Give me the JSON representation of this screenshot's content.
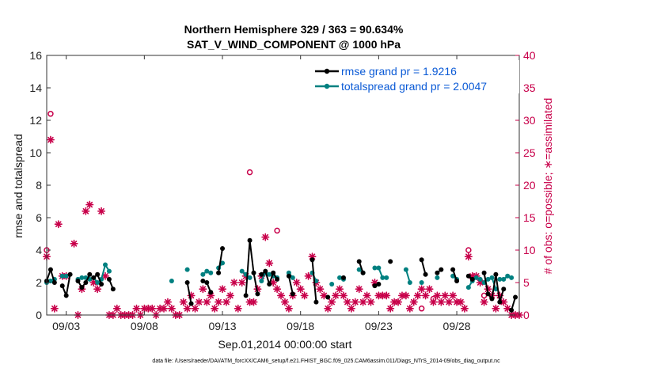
{
  "chart_data": {
    "type": "line",
    "title": "Northern Hemisphere 329 / 363 = 90.634%",
    "subtitle": "SAT_V_WIND_COMPONENT @ 1000 hPa",
    "xlabel": "Sep.01,2014 00:00:00 start",
    "ylabel": "rmse and totalspread",
    "y2label": "# of obs: o=possible; ∗=assimilated",
    "xlim": [
      1.75,
      32.0
    ],
    "ylim": [
      0,
      16
    ],
    "y2lim": [
      0,
      40
    ],
    "yticks": [
      "0",
      "2",
      "4",
      "6",
      "8",
      "10",
      "12",
      "14",
      "16"
    ],
    "y2ticks": [
      "0",
      "5",
      "10",
      "15",
      "20",
      "25",
      "30",
      "35",
      "40"
    ],
    "xticks": [
      {
        "x": 3,
        "label": "09/03"
      },
      {
        "x": 8,
        "label": "09/08"
      },
      {
        "x": 13,
        "label": "09/13"
      },
      {
        "x": 18,
        "label": "09/18"
      },
      {
        "x": 23,
        "label": "09/23"
      },
      {
        "x": 28,
        "label": "09/28"
      }
    ],
    "grid": false,
    "legend_position": "top-right",
    "series": [
      {
        "name": "rmse grand pr = 1.9216",
        "color": "#000000",
        "segments": [
          [
            [
              1.75,
              2.1
            ],
            [
              2.0,
              2.8
            ],
            [
              2.25,
              2.0
            ]
          ],
          [
            [
              2.75,
              1.8
            ],
            [
              3.0,
              1.2
            ],
            [
              3.25,
              2.5
            ]
          ],
          [
            [
              3.75,
              2.1
            ],
            [
              4.0,
              1.7
            ],
            [
              4.25,
              2.0
            ],
            [
              4.5,
              2.5
            ]
          ],
          [
            [
              4.75,
              2.3
            ],
            [
              5.0,
              2.5
            ],
            [
              5.25,
              1.9
            ]
          ],
          [
            [
              5.75,
              2.2
            ],
            [
              6.0,
              1.6
            ]
          ],
          [
            [
              10.75,
              2.0
            ],
            [
              11.0,
              0.7
            ]
          ],
          [
            [
              11.75,
              2.1
            ],
            [
              12.0,
              2.0
            ],
            [
              12.25,
              1.4
            ]
          ],
          [
            [
              12.75,
              2.6
            ],
            [
              13.0,
              4.1
            ]
          ],
          [
            [
              14.5,
              1.2
            ],
            [
              14.75,
              4.6
            ],
            [
              15.0,
              2.6
            ],
            [
              15.25,
              1.3
            ]
          ],
          [
            [
              15.5,
              2.5
            ],
            [
              15.75,
              2.7
            ],
            [
              16.0,
              1.9
            ],
            [
              16.25,
              2.6
            ],
            [
              16.5,
              2.2
            ]
          ],
          [
            [
              17.25,
              2.4
            ],
            [
              17.5,
              1.3
            ]
          ],
          [
            [
              18.75,
              3.4
            ],
            [
              19.0,
              0.8
            ]
          ],
          [
            [
              19.75,
              1.1
            ]
          ],
          [
            [
              20.75,
              2.3
            ]
          ],
          [
            [
              21.75,
              3.3
            ],
            [
              22.0,
              2.6
            ]
          ],
          [
            [
              22.75,
              1.8
            ],
            [
              23.0,
              1.9
            ]
          ],
          [
            [
              23.75,
              3.3
            ]
          ],
          [
            [
              25.75,
              3.4
            ],
            [
              26.0,
              2.5
            ]
          ],
          [
            [
              26.75,
              2.6
            ],
            [
              27.0,
              2.8
            ]
          ],
          [
            [
              27.75,
              2.8
            ],
            [
              28.0,
              2.1
            ]
          ],
          [
            [
              28.75,
              2.4
            ],
            [
              29.0,
              2.2
            ]
          ],
          [
            [
              29.75,
              2.6
            ],
            [
              30.0,
              1.3
            ],
            [
              30.25,
              1.0
            ],
            [
              30.5,
              2.5
            ],
            [
              30.75,
              0.8
            ],
            [
              31.0,
              1.6
            ]
          ],
          [
            [
              31.5,
              0.3
            ],
            [
              31.75,
              1.1
            ]
          ]
        ]
      },
      {
        "name": "totalspread grand pr = 2.0047",
        "color": "#008080",
        "segments": [
          [
            [
              1.75,
              2.0
            ],
            [
              2.0,
              2.1
            ],
            [
              2.25,
              2.2
            ]
          ],
          [
            [
              2.75,
              2.4
            ],
            [
              3.0,
              2.4
            ]
          ],
          [
            [
              3.75,
              2.2
            ],
            [
              4.0,
              2.3
            ],
            [
              4.25,
              2.3
            ],
            [
              4.5,
              2.2
            ]
          ],
          [
            [
              4.75,
              2.3
            ],
            [
              5.0,
              2.0
            ],
            [
              5.25,
              2.2
            ],
            [
              5.5,
              3.1
            ],
            [
              5.75,
              2.7
            ]
          ],
          [
            [
              9.75,
              2.1
            ]
          ],
          [
            [
              10.75,
              2.8
            ]
          ],
          [
            [
              11.75,
              2.5
            ],
            [
              12.0,
              2.7
            ],
            [
              12.25,
              2.6
            ]
          ],
          [
            [
              12.75,
              2.9
            ],
            [
              13.0,
              3.2
            ]
          ],
          [
            [
              14.25,
              2.7
            ],
            [
              14.5,
              2.5
            ],
            [
              14.75,
              2.3
            ]
          ],
          [
            [
              15.5,
              2.1
            ],
            [
              15.75,
              2.6
            ],
            [
              16.0,
              2.5
            ]
          ],
          [
            [
              16.25,
              2.4
            ],
            [
              16.5,
              2.3
            ]
          ],
          [
            [
              17.25,
              2.6
            ],
            [
              17.5,
              2.3
            ]
          ],
          [
            [
              18.75,
              2.6
            ],
            [
              19.0,
              2.1
            ]
          ],
          [
            [
              20.0,
              1.9
            ]
          ],
          [
            [
              20.5,
              2.3
            ],
            [
              20.75,
              2.2
            ]
          ],
          [
            [
              21.75,
              2.8
            ],
            [
              22.0,
              2.6
            ]
          ],
          [
            [
              22.75,
              2.9
            ],
            [
              23.0,
              2.9
            ],
            [
              23.25,
              2.3
            ],
            [
              23.5,
              2.3
            ]
          ],
          [
            [
              24.75,
              2.8
            ],
            [
              25.0,
              2.0
            ]
          ],
          [
            [
              25.75,
              2.0
            ]
          ],
          [
            [
              26.75,
              2.3
            ]
          ],
          [
            [
              27.75,
              2.4
            ],
            [
              28.0,
              2.2
            ]
          ],
          [
            [
              28.75,
              1.7
            ],
            [
              29.0,
              2.1
            ],
            [
              29.25,
              2.3
            ],
            [
              29.5,
              2.2
            ]
          ],
          [
            [
              29.75,
              2.0
            ],
            [
              30.0,
              2.2
            ],
            [
              30.25,
              2.3
            ],
            [
              30.5,
              1.6
            ]
          ],
          [
            [
              30.75,
              2.2
            ],
            [
              31.0,
              2.2
            ],
            [
              31.25,
              2.4
            ],
            [
              31.5,
              2.3
            ]
          ]
        ]
      }
    ],
    "obs_possible": {
      "color": "#c8004a",
      "x": [
        1.75,
        2.0,
        14.75,
        16.5,
        25.75,
        26.5,
        28.75,
        29.75
      ],
      "y": [
        10,
        31,
        22,
        13,
        1,
        2.5,
        10,
        3
      ]
    },
    "obs_assimilated": {
      "color": "#c8004a",
      "x": [
        1.75,
        2.0,
        2.25,
        2.5,
        2.75,
        3.0,
        3.5,
        3.75,
        4.0,
        4.25,
        4.5,
        4.75,
        5.0,
        5.25,
        5.5,
        5.75,
        6.0,
        6.25,
        6.5,
        6.75,
        7.0,
        7.25,
        7.5,
        7.75,
        8.0,
        8.25,
        8.5,
        8.75,
        9.0,
        9.25,
        9.5,
        9.75,
        10.0,
        10.25,
        10.5,
        10.75,
        11.0,
        11.25,
        11.5,
        11.75,
        12.0,
        12.25,
        12.5,
        12.75,
        13.0,
        13.25,
        13.5,
        13.75,
        14.0,
        14.25,
        14.5,
        14.75,
        15.0,
        15.25,
        15.5,
        15.75,
        16.0,
        16.25,
        16.5,
        16.75,
        17.0,
        17.25,
        17.5,
        17.75,
        18.0,
        18.25,
        18.5,
        18.75,
        19.0,
        19.25,
        19.5,
        19.75,
        20.0,
        20.25,
        20.5,
        20.75,
        21.0,
        21.25,
        21.5,
        21.75,
        22.0,
        22.25,
        22.5,
        22.75,
        23.0,
        23.25,
        23.5,
        23.75,
        24.0,
        24.25,
        24.5,
        24.75,
        25.0,
        25.25,
        25.5,
        25.75,
        26.0,
        26.25,
        26.5,
        26.75,
        27.0,
        27.25,
        27.5,
        27.75,
        28.0,
        28.25,
        28.5,
        28.75,
        29.0,
        29.25,
        29.5,
        29.75,
        30.0,
        30.25,
        30.5,
        30.75,
        31.0,
        31.25,
        31.5,
        31.75,
        32.0
      ],
      "y": [
        9,
        27,
        1,
        14,
        6,
        6,
        11,
        0,
        4,
        16,
        17,
        5,
        4,
        16,
        6,
        0,
        0,
        1,
        0,
        0,
        0,
        0,
        1,
        0,
        1,
        1,
        1,
        0,
        1,
        1,
        2,
        1,
        0,
        0,
        2,
        1,
        3,
        1,
        2,
        4,
        2,
        3,
        1,
        2,
        4,
        2,
        3,
        5,
        1,
        5,
        6,
        2,
        2,
        4,
        6,
        12,
        8,
        5,
        4,
        3,
        2,
        1,
        3,
        5,
        4,
        3,
        6,
        9,
        5,
        4,
        3,
        1,
        2,
        3,
        4,
        3,
        2,
        1,
        2,
        4,
        2,
        3,
        2,
        5,
        3,
        3,
        3,
        1,
        2,
        2,
        3,
        3,
        1,
        2,
        3,
        4,
        3,
        4,
        2,
        3,
        2,
        3,
        2,
        3,
        2,
        2,
        1,
        9,
        6,
        6,
        5,
        2,
        4,
        3,
        1,
        3,
        2,
        1,
        0,
        0,
        0
      ]
    },
    "footnote": "data file: /Users/raeder/DAI/ATM_forcXX/CAM6_setup/f.e21.FHIST_BGC.f09_025.CAM6assim.011/Diags_NTrS_2014-09/obs_diag_output.nc"
  }
}
